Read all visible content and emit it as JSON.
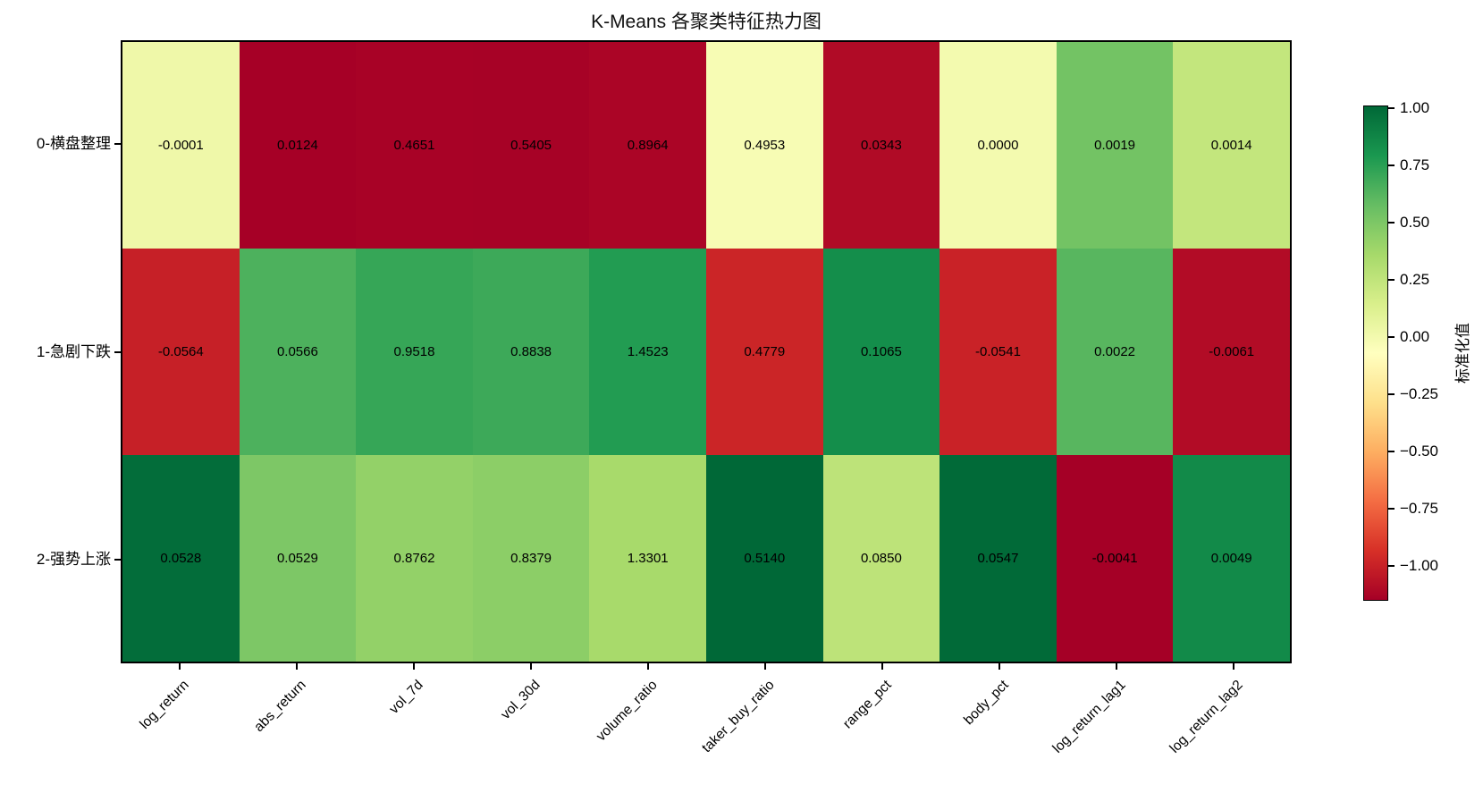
{
  "title": "K-Means 各聚类特征热力图",
  "chart_data": {
    "type": "heatmap",
    "rows": [
      "0-横盘整理",
      "1-急剧下跌",
      "2-强势上涨"
    ],
    "columns": [
      "log_return",
      "abs_return",
      "vol_7d",
      "vol_30d",
      "volume_ratio",
      "taker_buy_ratio",
      "range_pct",
      "body_pct",
      "log_return_lag1",
      "log_return_lag2"
    ],
    "cell_labels": [
      [
        "-0.0001",
        "0.0124",
        "0.4651",
        "0.5405",
        "0.8964",
        "0.4953",
        "0.0343",
        "0.0000",
        "0.0019",
        "0.0014"
      ],
      [
        "-0.0564",
        "0.0566",
        "0.9518",
        "0.8838",
        "1.4523",
        "0.4779",
        "0.1065",
        "-0.0541",
        "0.0022",
        "-0.0061"
      ],
      [
        "0.0528",
        "0.0529",
        "0.8762",
        "0.8379",
        "1.3301",
        "0.5140",
        "0.0850",
        "0.0547",
        "-0.0041",
        "0.0049"
      ]
    ],
    "standardized_values": [
      [
        0.0204,
        -1.1514,
        -1.1426,
        -1.1459,
        -1.1292,
        -0.024,
        -1.1051,
        -0.0037,
        0.5346,
        0.2372
      ],
      [
        -1.0102,
        0.6512,
        0.7156,
        0.6961,
        0.7737,
        -0.9878,
        0.8425,
        -0.9982,
        0.619,
        -1.0973
      ],
      [
        0.9895,
        0.5003,
        0.427,
        0.4498,
        0.3554,
        1.0118,
        0.2626,
        1.0019,
        -1.1536,
        0.86
      ]
    ],
    "colormap": {
      "name": "RdYlGn",
      "anchors": [
        "#a50026",
        "#d73027",
        "#f46d43",
        "#fdae61",
        "#fee08b",
        "#ffffbf",
        "#d9ef8b",
        "#a6d96a",
        "#66bd63",
        "#1a9850",
        "#006837"
      ]
    },
    "colorbar": {
      "label": "标准化值",
      "vmin": -1.1536,
      "vmax": 1.0118,
      "tick_values": [
        1.0,
        0.75,
        0.5,
        0.25,
        0.0,
        -0.25,
        -0.5,
        -0.75,
        -1.0
      ],
      "tick_labels": [
        "1.00",
        "0.75",
        "0.50",
        "0.25",
        "0.00",
        "−0.25",
        "−0.50",
        "−0.75",
        "−1.00"
      ]
    },
    "annotation_color": "#000000",
    "background_color": "#ffffff"
  }
}
